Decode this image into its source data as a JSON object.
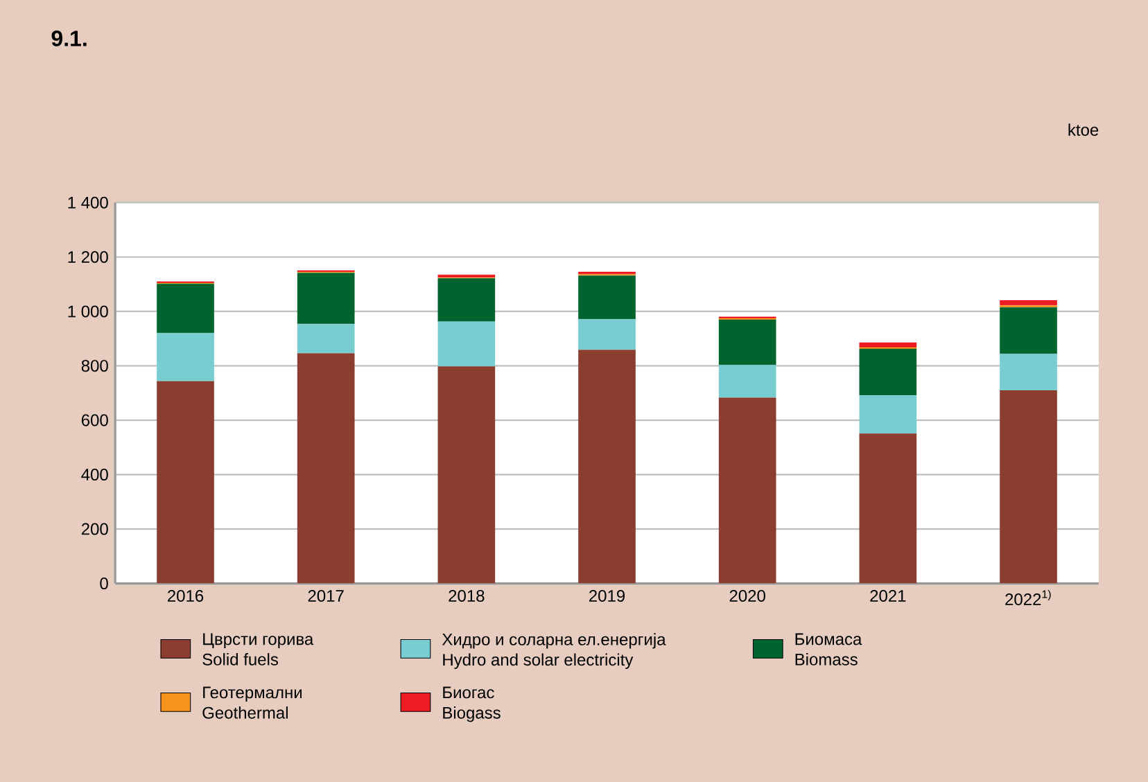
{
  "chart_data": {
    "type": "bar",
    "stacked": true,
    "title": "9.1.",
    "ylabel": "ktoe",
    "categories": [
      "2016",
      "2017",
      "2018",
      "2019",
      "2020",
      "2021",
      "2022$^{1)}$"
    ],
    "series": [
      {
        "name": "Цврсти горива\nSolid fuels",
        "color": "#8b3e2f",
        "values": [
          744,
          846,
          798,
          859,
          683,
          551,
          710
        ]
      },
      {
        "name": "Хидро и соларна ел.енергија\nHydro and solar electricity",
        "color": "#78cdd0",
        "values": [
          176,
          108,
          165,
          112,
          120,
          141,
          134
        ]
      },
      {
        "name": "Биомаса\nBiomass",
        "color": "#00642e",
        "values": [
          182,
          188,
          159,
          161,
          167,
          171,
          171
        ]
      },
      {
        "name": "Геотермални\nGeothermal",
        "color": "#f7941d",
        "values": [
          3,
          4,
          3,
          5,
          5,
          5,
          7
        ]
      },
      {
        "name": "Биогас\nBiogass",
        "color": "#ed1c24",
        "values": [
          5,
          5,
          10,
          9,
          6,
          18,
          19
        ]
      }
    ],
    "ylim": [
      0,
      1400
    ],
    "yticks": [
      0,
      200,
      400,
      600,
      800,
      {
        "value": 1000,
        "label": "1 000"
      },
      {
        "value": 1200,
        "label": "1 200"
      },
      {
        "value": 1400,
        "label": "1 400"
      }
    ],
    "grid": "y",
    "legend": "bottom"
  }
}
